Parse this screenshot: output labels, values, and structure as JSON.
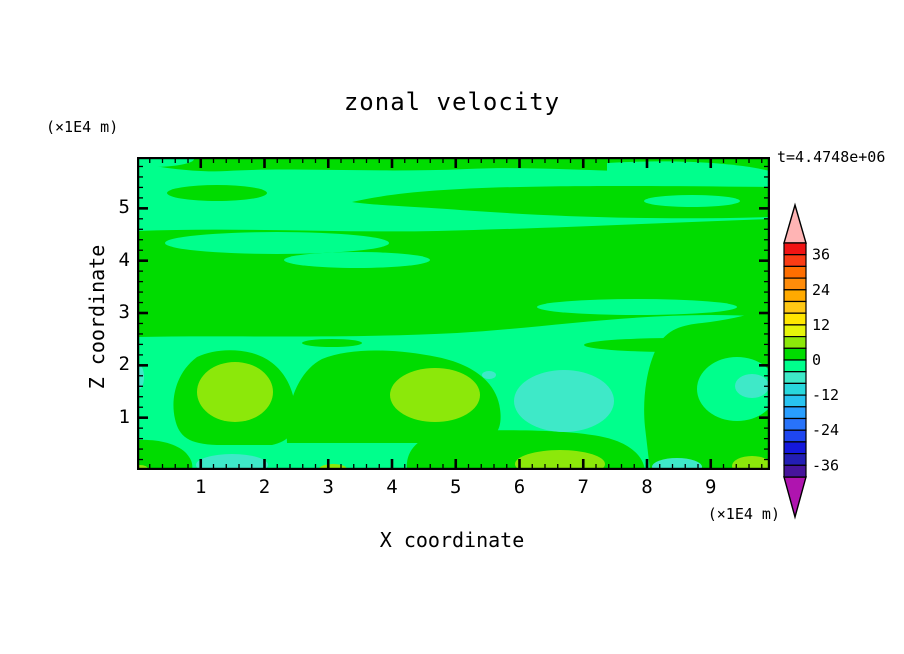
{
  "header": {
    "title": "zonal velocity",
    "timestamp": "t=4.4748e+06"
  },
  "axes": {
    "x": {
      "label": "X coordinate",
      "unit": "(×1E4 m)",
      "ticks": [
        1,
        2,
        3,
        4,
        5,
        6,
        7,
        8,
        9
      ]
    },
    "y": {
      "label": "Z coordinate",
      "unit": "(×1E4 m)",
      "ticks": [
        1,
        2,
        3,
        4,
        5
      ]
    }
  },
  "chart_data": {
    "type": "heatmap",
    "title": "zonal velocity",
    "xlabel": "X coordinate",
    "ylabel": "Z coordinate",
    "x_unit": "(×1E4 m)",
    "y_unit": "(×1E4 m)",
    "timestamp": "t=4.4748e+06",
    "xlim": [
      0,
      9.93
    ],
    "ylim": [
      0,
      5.98
    ],
    "xticks": [
      1,
      2,
      3,
      4,
      5,
      6,
      7,
      8,
      9
    ],
    "yticks": [
      1,
      2,
      3,
      4,
      5
    ],
    "minor_tick_interval": 0.2,
    "grid": false,
    "legend_position": "right-colorbar",
    "palette": {
      "chartreuse": "#8CE80A",
      "green": "#00DC00",
      "spring": "#00FF8C",
      "aqua": "#3EE9C8"
    },
    "field_features": [
      {
        "region": "upper half (z≈2.6–6)",
        "value_band": "0 to 4 with -4 to 0 streaks",
        "pattern": "horizontal green / spring-green layered streaks"
      },
      {
        "region": "z≈3.3–3.9 band",
        "value_band": "-4 to 0",
        "pattern": "spring-green band with thin green lenses"
      },
      {
        "region": "x≈1–2.2, z≈0.7–2.2",
        "value_band": "up to 4–8",
        "pattern": "green cell with chartreuse core"
      },
      {
        "region": "x≈4–5.4, z≈0.75–1.95",
        "value_band": "up to 4–8",
        "pattern": "green cell with chartreuse core"
      },
      {
        "region": "x≈5.9–7.5, z≈0.6–1.9",
        "value_band": "down to -8 to -4",
        "pattern": "spring-green cell with aquamarine core"
      },
      {
        "region": "bottom edge z≈0–0.5",
        "value_band": "-8 to 8 alternating",
        "pattern": "small chartreuse and aquamarine pockets"
      }
    ],
    "colorbar": {
      "labels": [
        36,
        24,
        12,
        0,
        -12,
        -24,
        -36
      ],
      "level_step": 4,
      "range": [
        -40,
        40
      ],
      "over_arrow_color": "#FFB4B4",
      "under_arrow_color": "#AF14AF",
      "segments": [
        {
          "min": 36,
          "max": 40,
          "color": "#F01414"
        },
        {
          "min": 32,
          "max": 36,
          "color": "#FA3C14"
        },
        {
          "min": 28,
          "max": 32,
          "color": "#FF6E00"
        },
        {
          "min": 24,
          "max": 28,
          "color": "#FF8C0A"
        },
        {
          "min": 20,
          "max": 24,
          "color": "#FFAA00"
        },
        {
          "min": 16,
          "max": 20,
          "color": "#FFC814"
        },
        {
          "min": 12,
          "max": 16,
          "color": "#FFE600"
        },
        {
          "min": 8,
          "max": 12,
          "color": "#E6F50A"
        },
        {
          "min": 4,
          "max": 8,
          "color": "#8CE80A"
        },
        {
          "min": 0,
          "max": 4,
          "color": "#00DC00"
        },
        {
          "min": -4,
          "max": 0,
          "color": "#00FF8C"
        },
        {
          "min": -8,
          "max": -4,
          "color": "#3EE9C8"
        },
        {
          "min": -12,
          "max": -8,
          "color": "#28D7DC"
        },
        {
          "min": -16,
          "max": -12,
          "color": "#28C3F0"
        },
        {
          "min": -20,
          "max": -16,
          "color": "#289EFF"
        },
        {
          "min": -24,
          "max": -20,
          "color": "#2873FA"
        },
        {
          "min": -28,
          "max": -24,
          "color": "#1E46F0"
        },
        {
          "min": -32,
          "max": -28,
          "color": "#1418DC"
        },
        {
          "min": -36,
          "max": -32,
          "color": "#231EB4"
        },
        {
          "min": -40,
          "max": -36,
          "color": "#46149B"
        }
      ]
    }
  }
}
